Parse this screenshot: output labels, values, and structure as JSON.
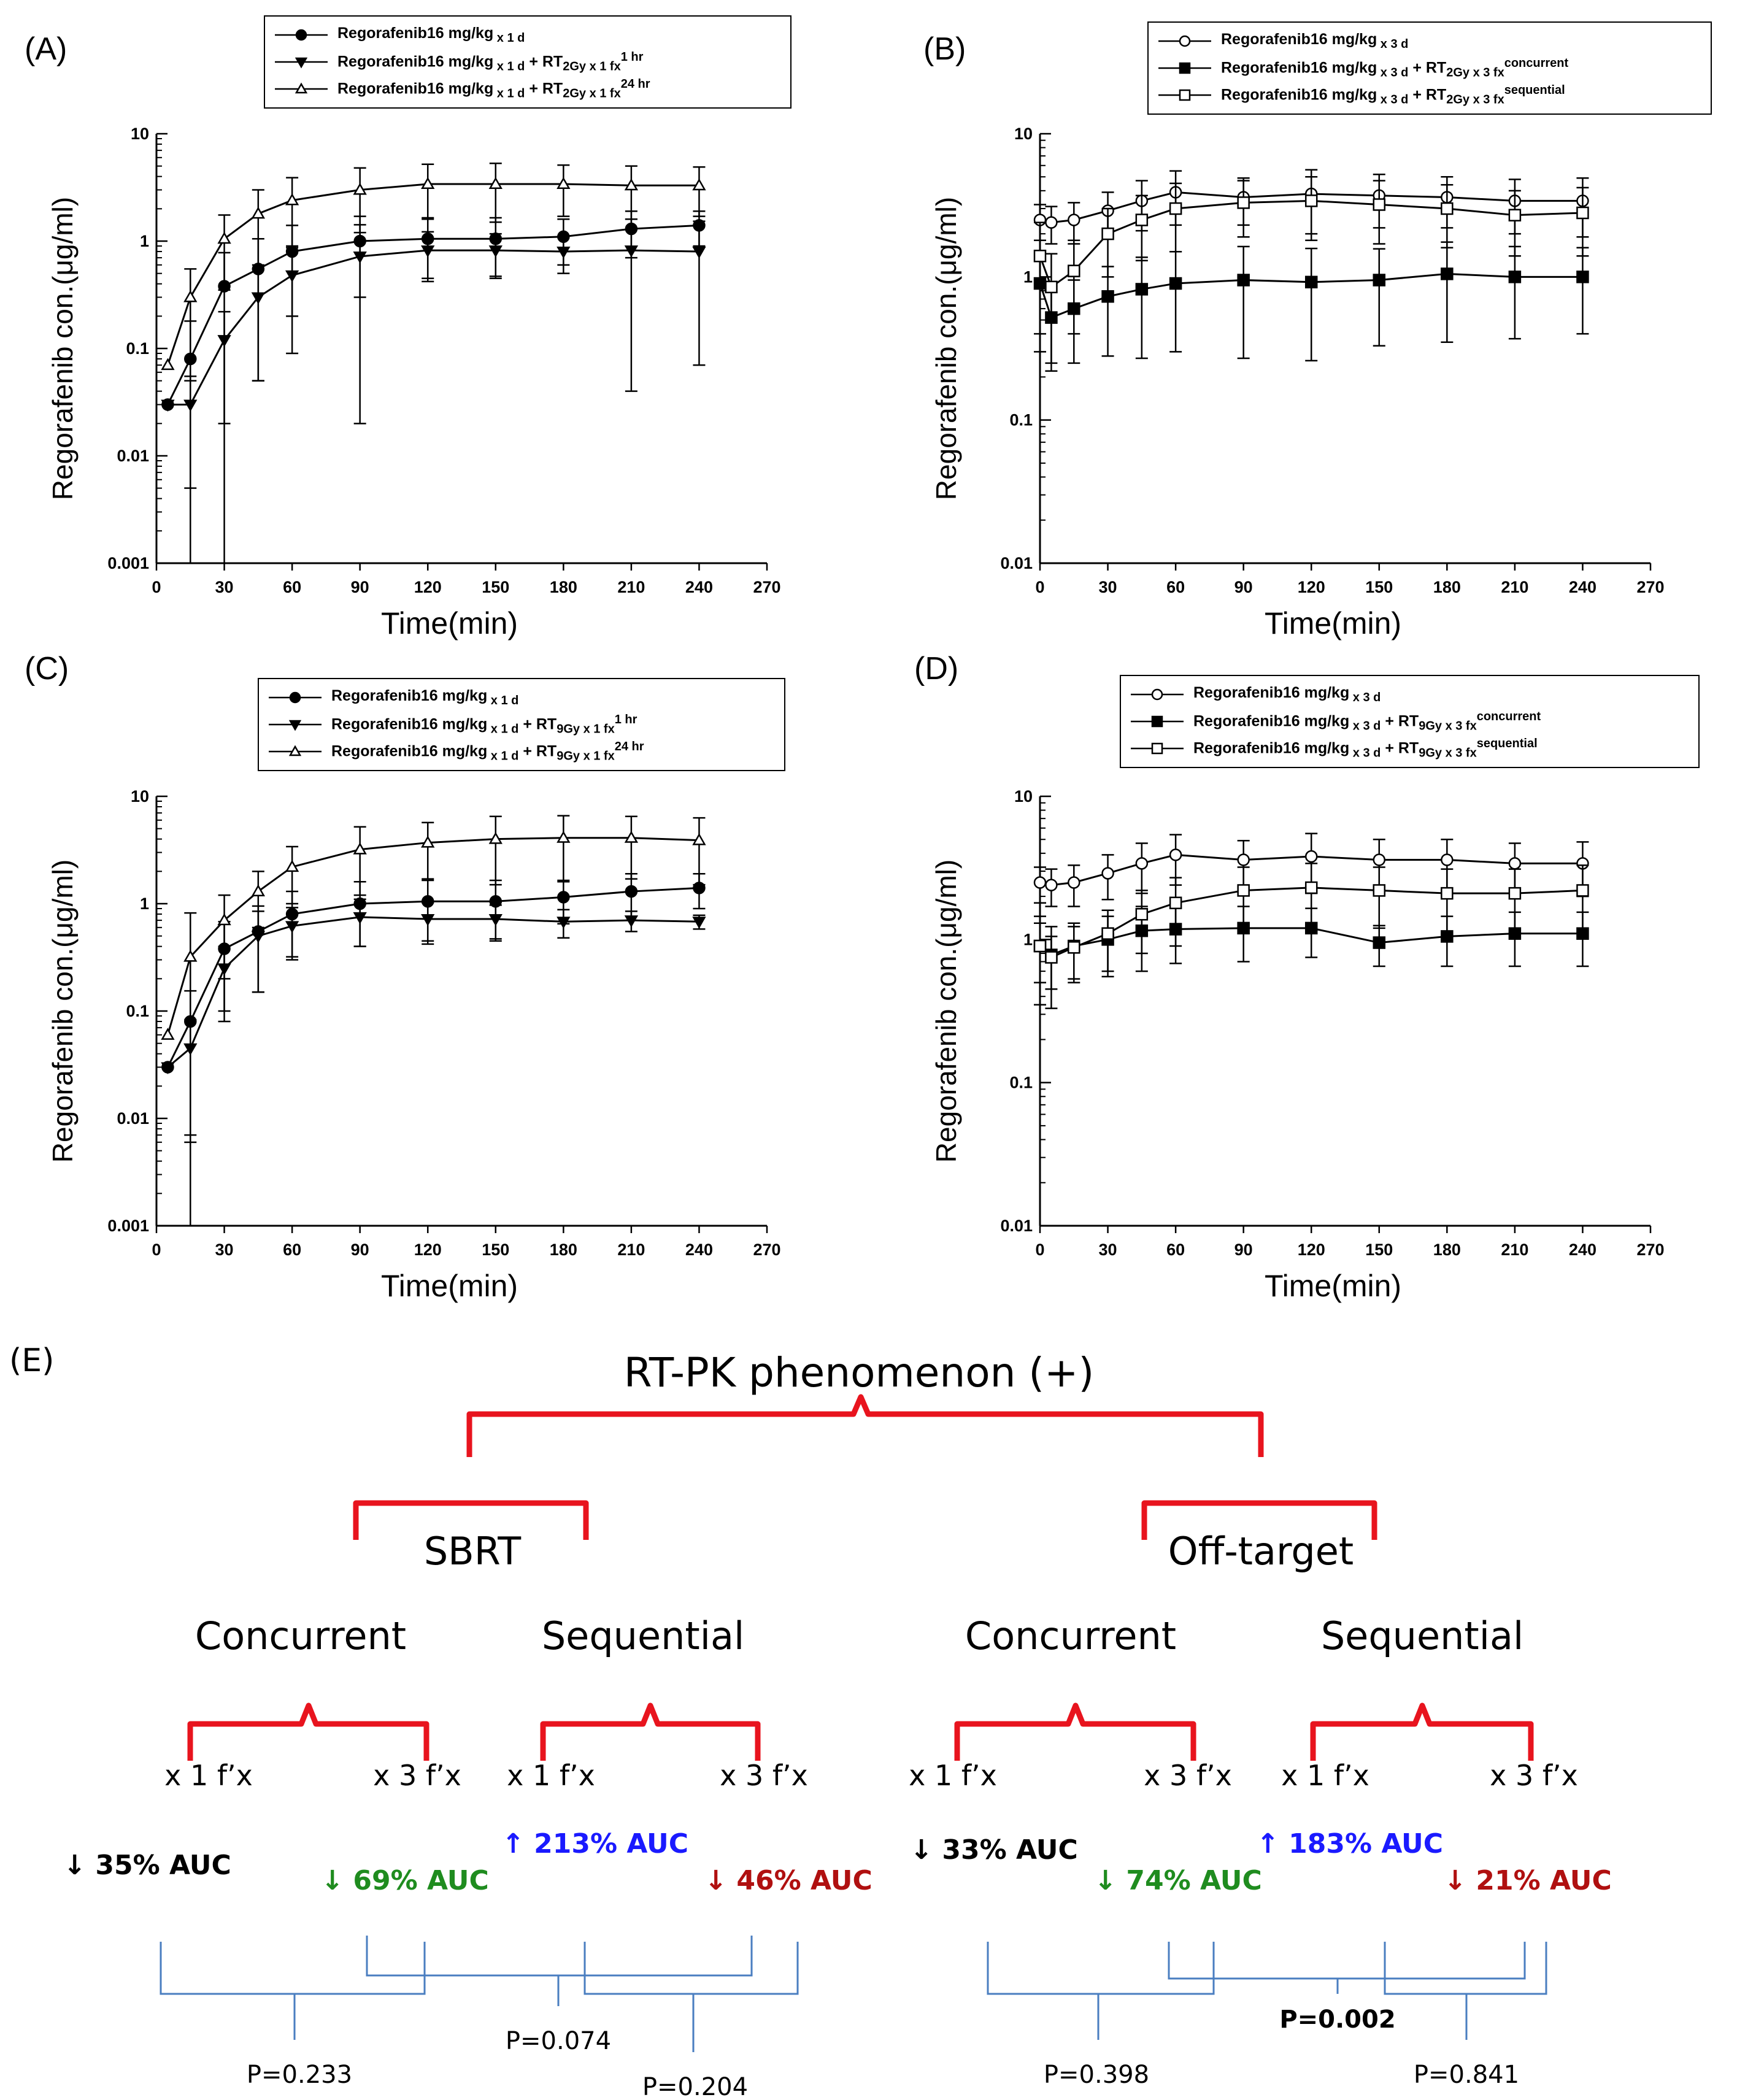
{
  "panels": [
    {
      "id": "A",
      "letter": "(A)",
      "legend": [
        {
          "name": "Regorafenib16 mg/kg",
          "sub": "x 1 d",
          "mid": "",
          "sub2": "",
          "sup": "",
          "marker": "circle-filled"
        },
        {
          "name": "Regorafenib16 mg/kg",
          "sub": "x 1 d",
          "mid": "+ RT",
          "sub2": "2Gy x 1 fx",
          "sup": "1 hr",
          "marker": "tri-down-filled"
        },
        {
          "name": "Regorafenib16 mg/kg",
          "sub": "x 1 d",
          "mid": "+ RT",
          "sub2": "2Gy x 1 fx",
          "sup": "24 hr",
          "marker": "tri-up-open"
        }
      ]
    },
    {
      "id": "B",
      "letter": "(B)",
      "legend": [
        {
          "name": "Regorafenib16 mg/kg",
          "sub": "x 3 d",
          "mid": "",
          "sub2": "",
          "sup": "",
          "marker": "circle-open"
        },
        {
          "name": "Regorafenib16 mg/kg",
          "sub": "x 3 d",
          "mid": "+ RT",
          "sub2": "2Gy x 3 fx",
          "sup": "concurrent",
          "marker": "square-filled"
        },
        {
          "name": "Regorafenib16 mg/kg",
          "sub": "x 3 d",
          "mid": "+ RT",
          "sub2": "2Gy x 3 fx",
          "sup": "sequential",
          "marker": "square-open"
        }
      ]
    },
    {
      "id": "C",
      "letter": "(C)",
      "legend": [
        {
          "name": "Regorafenib16 mg/kg",
          "sub": "x 1 d",
          "mid": "",
          "sub2": "",
          "sup": "",
          "marker": "circle-filled"
        },
        {
          "name": "Regorafenib16 mg/kg",
          "sub": "x 1 d",
          "mid": "+ RT",
          "sub2": "9Gy x 1 fx",
          "sup": "1 hr",
          "marker": "tri-down-filled"
        },
        {
          "name": "Regorafenib16 mg/kg",
          "sub": "x 1 d",
          "mid": "+ RT",
          "sub2": "9Gy x 1 fx",
          "sup": "24 hr",
          "marker": "tri-up-open"
        }
      ]
    },
    {
      "id": "D",
      "letter": "(D)",
      "legend": [
        {
          "name": "Regorafenib16 mg/kg",
          "sub": "x 3 d",
          "mid": "",
          "sub2": "",
          "sup": "",
          "marker": "circle-open"
        },
        {
          "name": "Regorafenib16 mg/kg",
          "sub": "x 3 d",
          "mid": "+ RT",
          "sub2": "9Gy x 3 fx",
          "sup": "concurrent",
          "marker": "square-filled"
        },
        {
          "name": "Regorafenib16 mg/kg",
          "sub": "x 3 d",
          "mid": "+ RT",
          "sub2": "9Gy x 3 fx",
          "sup": "sequential",
          "marker": "square-open"
        }
      ]
    }
  ],
  "chart_data": [
    {
      "id": "A",
      "type": "line",
      "yscale": "log",
      "xlabel": "Time(min)",
      "ylabel": "Regorafenib con.(μg/ml)",
      "xlim": [
        0,
        270
      ],
      "ylim": [
        0.001,
        10
      ],
      "xticks": [
        0,
        30,
        60,
        90,
        120,
        150,
        180,
        210,
        240,
        270
      ],
      "yticks": [
        0.001,
        0.01,
        0.1,
        1,
        10
      ],
      "yticklabels": [
        "0.001",
        "0.01",
        "0.1",
        "1",
        "10"
      ],
      "series": [
        {
          "marker": "circle-filled",
          "x": [
            5,
            15,
            30,
            45,
            60,
            90,
            120,
            150,
            180,
            210,
            240
          ],
          "y": [
            0.03,
            0.08,
            0.38,
            0.55,
            0.8,
            1.0,
            1.05,
            1.05,
            1.1,
            1.3,
            1.4
          ],
          "err": [
            0,
            0.1,
            0.4,
            0.5,
            0.6,
            0.7,
            0.6,
            0.6,
            0.5,
            0.6,
            0.5
          ]
        },
        {
          "marker": "tri-down-filled",
          "x": [
            5,
            15,
            30,
            45,
            60,
            90,
            120,
            150,
            180,
            210,
            240
          ],
          "y": [
            0.03,
            0.03,
            0.12,
            0.3,
            0.48,
            0.72,
            0.82,
            0.82,
            0.8,
            0.82,
            0.8
          ],
          "err": [
            0,
            0.025,
            0.1,
            0.25,
            0.39,
            0.7,
            0.4,
            0.35,
            0.3,
            0.78,
            0.73
          ]
        },
        {
          "marker": "tri-up-open",
          "x": [
            5,
            15,
            30,
            45,
            60,
            90,
            120,
            150,
            180,
            210,
            240
          ],
          "y": [
            0.07,
            0.3,
            1.05,
            1.8,
            2.4,
            3.0,
            3.4,
            3.4,
            3.4,
            3.3,
            3.3
          ],
          "err": [
            0,
            0.25,
            0.7,
            1.2,
            1.5,
            1.8,
            1.8,
            1.9,
            1.7,
            1.7,
            1.6
          ]
        }
      ]
    },
    {
      "id": "B",
      "type": "line",
      "yscale": "log",
      "xlabel": "Time(min)",
      "ylabel": "Regorafenib con.(μg/ml)",
      "xlim": [
        0,
        270
      ],
      "ylim": [
        0.01,
        10
      ],
      "xticks": [
        0,
        30,
        60,
        90,
        120,
        150,
        180,
        210,
        240,
        270
      ],
      "yticks": [
        0.01,
        0.1,
        1,
        10
      ],
      "yticklabels": [
        "0.01",
        "0.1",
        "1",
        "10"
      ],
      "series": [
        {
          "marker": "circle-open",
          "x": [
            0,
            5,
            15,
            30,
            45,
            60,
            90,
            120,
            150,
            180,
            210,
            240
          ],
          "y": [
            2.5,
            2.4,
            2.5,
            2.9,
            3.4,
            3.9,
            3.6,
            3.8,
            3.7,
            3.6,
            3.4,
            3.4
          ],
          "err": [
            0.7,
            0.7,
            0.8,
            1.0,
            1.3,
            1.6,
            1.3,
            1.8,
            1.5,
            1.4,
            1.4,
            1.5
          ]
        },
        {
          "marker": "square-filled",
          "x": [
            0,
            5,
            15,
            30,
            45,
            60,
            90,
            120,
            150,
            180,
            210,
            240
          ],
          "y": [
            0.9,
            0.52,
            0.6,
            0.73,
            0.82,
            0.9,
            0.95,
            0.92,
            0.95,
            1.05,
            1.0,
            1.0
          ],
          "err": [
            0.6,
            0.3,
            0.35,
            0.45,
            0.55,
            0.6,
            0.68,
            0.66,
            0.62,
            0.7,
            0.63,
            0.6
          ]
        },
        {
          "marker": "square-open",
          "x": [
            0,
            5,
            15,
            30,
            45,
            60,
            90,
            120,
            150,
            180,
            210,
            240
          ],
          "y": [
            1.4,
            0.85,
            1.1,
            2.0,
            2.5,
            3.0,
            3.3,
            3.4,
            3.2,
            3.0,
            2.7,
            2.8
          ],
          "err": [
            1.0,
            0.6,
            0.7,
            1.0,
            1.2,
            1.5,
            1.4,
            1.6,
            1.5,
            1.4,
            1.3,
            1.4
          ]
        }
      ]
    },
    {
      "id": "C",
      "type": "line",
      "yscale": "log",
      "xlabel": "Time(min)",
      "ylabel": "Regorafenib con.(μg/ml)",
      "xlim": [
        0,
        270
      ],
      "ylim": [
        0.001,
        10
      ],
      "xticks": [
        0,
        30,
        60,
        90,
        120,
        150,
        180,
        210,
        240,
        270
      ],
      "yticks": [
        0.001,
        0.01,
        0.1,
        1,
        10
      ],
      "yticklabels": [
        "0.001",
        "0.01",
        "0.1",
        "1",
        "10"
      ],
      "series": [
        {
          "marker": "circle-filled",
          "x": [
            5,
            15,
            30,
            45,
            60,
            90,
            120,
            150,
            180,
            210,
            240
          ],
          "y": [
            0.03,
            0.08,
            0.38,
            0.55,
            0.8,
            1.0,
            1.05,
            1.05,
            1.15,
            1.3,
            1.4
          ],
          "err": [
            0,
            0.074,
            0.3,
            0.4,
            0.5,
            0.6,
            0.6,
            0.6,
            0.5,
            0.6,
            0.5
          ]
        },
        {
          "marker": "tri-down-filled",
          "x": [
            5,
            15,
            30,
            45,
            60,
            90,
            120,
            150,
            180,
            210,
            240
          ],
          "y": [
            0.03,
            0.045,
            0.25,
            0.5,
            0.62,
            0.75,
            0.72,
            0.72,
            0.68,
            0.7,
            0.68
          ],
          "err": [
            0,
            0.038,
            0.15,
            0.35,
            0.3,
            0.35,
            0.3,
            0.25,
            0.2,
            0.15,
            0.1
          ]
        },
        {
          "marker": "tri-up-open",
          "x": [
            5,
            15,
            30,
            45,
            60,
            90,
            120,
            150,
            180,
            210,
            240
          ],
          "y": [
            0.06,
            0.32,
            0.7,
            1.3,
            2.2,
            3.2,
            3.7,
            4.0,
            4.1,
            4.1,
            3.9
          ],
          "err": [
            0,
            0.5,
            0.5,
            0.7,
            1.2,
            2.0,
            2.0,
            2.5,
            2.5,
            2.4,
            2.4
          ]
        }
      ]
    },
    {
      "id": "D",
      "type": "line",
      "yscale": "log",
      "xlabel": "Time(min)",
      "ylabel": "Regorafenib con.(μg/ml)",
      "xlim": [
        0,
        270
      ],
      "ylim": [
        0.01,
        10
      ],
      "xticks": [
        0,
        30,
        60,
        90,
        120,
        150,
        180,
        210,
        240,
        270
      ],
      "yticks": [
        0.01,
        0.1,
        1,
        10
      ],
      "yticklabels": [
        "0.01",
        "0.1",
        "1",
        "10"
      ],
      "series": [
        {
          "marker": "circle-open",
          "x": [
            0,
            5,
            15,
            30,
            45,
            60,
            90,
            120,
            150,
            180,
            210,
            240
          ],
          "y": [
            2.5,
            2.4,
            2.5,
            2.9,
            3.4,
            3.9,
            3.6,
            3.8,
            3.6,
            3.6,
            3.4,
            3.4
          ],
          "err": [
            0.7,
            0.7,
            0.8,
            1.0,
            1.3,
            1.5,
            1.3,
            1.7,
            1.4,
            1.4,
            1.3,
            1.4
          ]
        },
        {
          "marker": "square-filled",
          "x": [
            0,
            5,
            15,
            30,
            45,
            60,
            90,
            120,
            150,
            180,
            210,
            240
          ],
          "y": [
            0.9,
            0.78,
            0.9,
            1.0,
            1.15,
            1.18,
            1.2,
            1.2,
            0.95,
            1.05,
            1.1,
            1.1
          ],
          "err": [
            0.55,
            0.45,
            0.4,
            0.45,
            0.55,
            0.5,
            0.5,
            0.45,
            0.3,
            0.4,
            0.45,
            0.45
          ]
        },
        {
          "marker": "square-open",
          "x": [
            0,
            5,
            15,
            30,
            45,
            60,
            90,
            120,
            150,
            180,
            210,
            240
          ],
          "y": [
            0.9,
            0.75,
            0.88,
            1.1,
            1.5,
            1.8,
            2.2,
            2.3,
            2.2,
            2.1,
            2.1,
            2.2
          ],
          "err": [
            0.4,
            0.3,
            0.35,
            0.5,
            0.7,
            0.9,
            1.0,
            1.1,
            1.0,
            1.0,
            1.0,
            1.1
          ]
        }
      ]
    }
  ],
  "diagram": {
    "letter": "(E)",
    "title": "RT-PK phenomenon  (+)",
    "groups": [
      {
        "name": "SBRT",
        "timings": [
          {
            "label": "Concurrent",
            "fx": [
              "x 1 f’x",
              "x 3 f’x"
            ]
          },
          {
            "label": "Sequential",
            "fx": [
              "x 1 f’x",
              "x 3 f’x"
            ]
          }
        ],
        "auc": [
          {
            "text": "↓ 35% AUC",
            "color": "#000000"
          },
          {
            "text": "↓ 69% AUC",
            "color": "#1f8c1f"
          },
          {
            "text": "↑ 213% AUC",
            "color": "#1a1aff"
          },
          {
            "text": "↓ 46% AUC",
            "color": "#b01010"
          }
        ],
        "pvalues": [
          "P=0.233",
          "P=0.074",
          "P=0.204"
        ]
      },
      {
        "name": "Off-target",
        "timings": [
          {
            "label": "Concurrent",
            "fx": [
              "x 1 f’x",
              "x 3 f’x"
            ]
          },
          {
            "label": "Sequential",
            "fx": [
              "x 1 f’x",
              "x 3 f’x"
            ]
          }
        ],
        "auc": [
          {
            "text": "↓ 33% AUC",
            "color": "#000000"
          },
          {
            "text": "↓ 74% AUC",
            "color": "#1f8c1f"
          },
          {
            "text": "↑ 183% AUC",
            "color": "#1a1aff"
          },
          {
            "text": "↓ 21% AUC",
            "color": "#b01010"
          }
        ],
        "pvalues": [
          "P=0.398",
          "P=0.002",
          "P=0.841"
        ]
      }
    ],
    "colors": {
      "brace": "#e8141e",
      "pbracket": "#4a7ec0"
    }
  }
}
